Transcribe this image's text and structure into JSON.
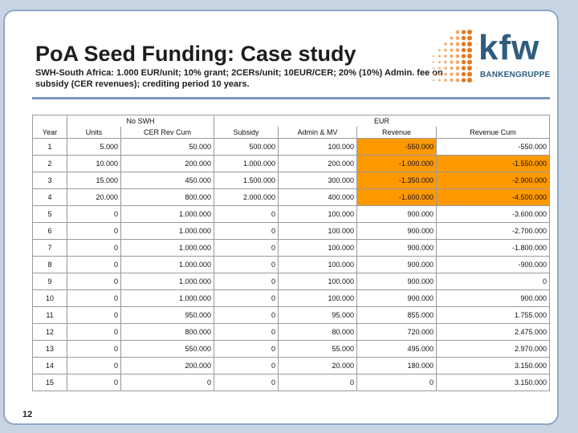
{
  "title": "PoA Seed Funding: Case study",
  "subtitle": "SWH-South Africa: 1.000 EUR/unit; 10% grant; 2CERs/unit; 10EUR/CER; 20% (10%) Admin. fee on subsidy (CER revenues); crediting period 10 years.",
  "logo": {
    "brand": "kfw",
    "sub": "BANKENGRUPPE"
  },
  "page_number": "12",
  "table": {
    "group_headers": {
      "no_swh": "No SWH",
      "eur": "EUR"
    },
    "columns": [
      "Year",
      "Units",
      "CER Rev Cum",
      "Subsidy",
      "Admin & MV",
      "Revenue",
      "Revenue Cum"
    ],
    "rows": [
      [
        "1",
        "5.000",
        "50.000",
        "500.000",
        "100.000",
        "-550.000",
        "-550.000"
      ],
      [
        "2",
        "10.000",
        "200.000",
        "1.000.000",
        "200.000",
        "-1.000.000",
        "-1.550.000"
      ],
      [
        "3",
        "15.000",
        "450.000",
        "1.500.000",
        "300.000",
        "-1.350.000",
        "-2.900.000"
      ],
      [
        "4",
        "20.000",
        "800.000",
        "2.000.000",
        "400.000",
        "-1.600.000",
        "-4.500.000"
      ],
      [
        "5",
        "0",
        "1.000.000",
        "0",
        "100.000",
        "900.000",
        "-3.600.000"
      ],
      [
        "6",
        "0",
        "1.000.000",
        "0",
        "100.000",
        "900.000",
        "-2.700.000"
      ],
      [
        "7",
        "0",
        "1.000.000",
        "0",
        "100.000",
        "900.000",
        "-1.800.000"
      ],
      [
        "8",
        "0",
        "1.000.000",
        "0",
        "100.000",
        "900.000",
        "-900.000"
      ],
      [
        "9",
        "0",
        "1.000.000",
        "0",
        "100.000",
        "900.000",
        "0"
      ],
      [
        "10",
        "0",
        "1.000.000",
        "0",
        "100.000",
        "900.000",
        "900.000"
      ],
      [
        "11",
        "0",
        "950.000",
        "0",
        "95.000",
        "855.000",
        "1.755.000"
      ],
      [
        "12",
        "0",
        "800.000",
        "0",
        "80.000",
        "720.000",
        "2.475.000"
      ],
      [
        "13",
        "0",
        "550.000",
        "0",
        "55.000",
        "495.000",
        "2.970.000"
      ],
      [
        "14",
        "0",
        "200.000",
        "0",
        "20.000",
        "180.000",
        "3.150.000"
      ],
      [
        "15",
        "0",
        "0",
        "0",
        "0",
        "0",
        "3.150.000"
      ]
    ],
    "highlight": {
      "revenue_rows": [
        1,
        2,
        3,
        4
      ],
      "revenue_cum_rows": [
        2,
        3,
        4
      ],
      "color": "#ff9900"
    }
  },
  "colors": {
    "background": "#c9d4e3",
    "border": "#8fa6c6",
    "rule": "#7f97bd",
    "kfw_blue": "#2f5d7f",
    "kfw_orange": "#e8761e"
  }
}
